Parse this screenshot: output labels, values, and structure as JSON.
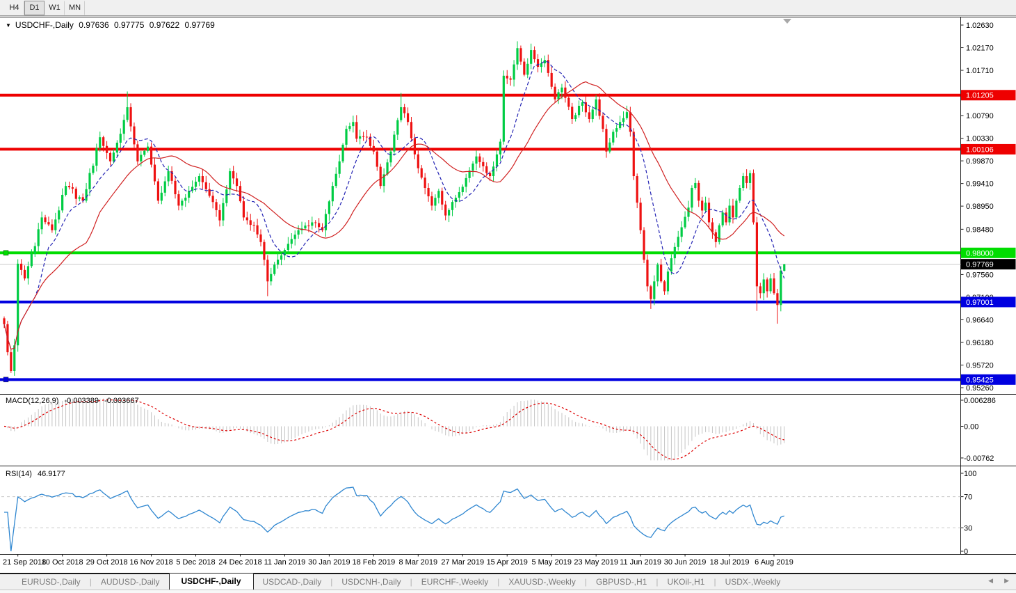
{
  "toolbar": {
    "timeframes": [
      "H4",
      "D1",
      "W1",
      "MN"
    ],
    "active": "D1"
  },
  "chart": {
    "menu_icon": "▼",
    "symbol": "USDCHF-,Daily",
    "quote": {
      "open": "0.97636",
      "high": "0.97775",
      "low": "0.97622",
      "close": "0.97769"
    }
  },
  "chart_data": {
    "type": "candlestick",
    "title": "USDCHF-,Daily",
    "ylim": [
      0.95189,
      1.02715
    ],
    "grid": false,
    "x_labels": [
      "21 Sep 2018",
      "10 Oct 2018",
      "29 Oct 2018",
      "16 Nov 2018",
      "5 Dec 2018",
      "24 Dec 2018",
      "11 Jan 2019",
      "30 Jan 2019",
      "18 Feb 2019",
      "8 Mar 2019",
      "27 Mar 2019",
      "15 Apr 2019",
      "5 May 2019",
      "23 May 2019",
      "11 Jun 2019",
      "30 Jun 2019",
      "18 Jul 2019",
      "6 Aug 2019"
    ],
    "x_label_first_candle": 4,
    "x_label_step": 13,
    "candles_n": 229,
    "y_axis": {
      "ticks": [
        "1.02630",
        "1.02170",
        "1.01710",
        "1.00790",
        "1.00330",
        "0.99870",
        "0.99410",
        "0.98950",
        "0.98480",
        "0.97560",
        "0.97100",
        "0.96640",
        "0.96180",
        "0.95720",
        "0.95260"
      ]
    },
    "hlines": [
      {
        "value": 1.01205,
        "label": "1.01205",
        "color": "#ee0000",
        "width": 4,
        "handles": false
      },
      {
        "value": 1.00106,
        "label": "1.00106",
        "color": "#ee0000",
        "width": 4,
        "handles": false
      },
      {
        "value": 0.98,
        "label": "0.98000",
        "color": "#00dd00",
        "width": 4,
        "handles": true
      },
      {
        "value": 0.97001,
        "label": "0.97001",
        "color": "#0000e0",
        "width": 4,
        "handles": false
      },
      {
        "value": 0.95425,
        "label": "0.95425",
        "color": "#0000e0",
        "width": 4,
        "handles": true
      }
    ],
    "current_price": {
      "value": 0.97769,
      "label": "0.97769",
      "line_color": "#c9c9c9",
      "box_color": "#000000"
    },
    "colors": {
      "bull": "#00cc44",
      "bear": "#ee1111",
      "ma_fast": "#2424b4",
      "ma_slow": "#d02020"
    },
    "moving_averages": [
      {
        "period": 10,
        "color": "#2424b4",
        "dashed": true
      },
      {
        "period": 25,
        "color": "#d02020",
        "dashed": false
      }
    ],
    "price_anchors": [
      [
        0,
        0.9655
      ],
      [
        1,
        0.9598
      ],
      [
        2,
        0.956
      ],
      [
        3,
        0.9612
      ],
      [
        4,
        0.9778
      ],
      [
        6,
        0.9748
      ],
      [
        11,
        0.9872
      ],
      [
        14,
        0.9846
      ],
      [
        18,
        0.9936
      ],
      [
        23,
        0.9906
      ],
      [
        28,
        1.0035
      ],
      [
        31,
        0.9986
      ],
      [
        34,
        1.0042
      ],
      [
        36,
        1.0096
      ],
      [
        39,
        0.9986
      ],
      [
        42,
        1.0016
      ],
      [
        45,
        0.9906
      ],
      [
        48,
        0.9966
      ],
      [
        51,
        0.9896
      ],
      [
        54,
        0.9926
      ],
      [
        57,
        0.9956
      ],
      [
        60,
        0.9916
      ],
      [
        63,
        0.9866
      ],
      [
        66,
        0.9966
      ],
      [
        68,
        0.9936
      ],
      [
        70,
        0.9872
      ],
      [
        73,
        0.9856
      ],
      [
        75,
        0.9822
      ],
      [
        76,
        0.9786
      ],
      [
        77,
        0.9742
      ],
      [
        79,
        0.9776
      ],
      [
        82,
        0.9806
      ],
      [
        86,
        0.9846
      ],
      [
        90,
        0.9862
      ],
      [
        93,
        0.9846
      ],
      [
        96,
        0.9936
      ],
      [
        98,
        0.9986
      ],
      [
        100,
        1.0052
      ],
      [
        102,
        1.0066
      ],
      [
        103,
        1.0032
      ],
      [
        106,
        1.0036
      ],
      [
        108,
        1.0006
      ],
      [
        110,
        0.9936
      ],
      [
        113,
        1.0006
      ],
      [
        116,
        1.0096
      ],
      [
        118,
        1.0066
      ],
      [
        121,
        0.9972
      ],
      [
        123,
        0.9932
      ],
      [
        125,
        0.9896
      ],
      [
        127,
        0.9926
      ],
      [
        129,
        0.9876
      ],
      [
        132,
        0.9912
      ],
      [
        135,
        0.9952
      ],
      [
        138,
        0.9996
      ],
      [
        140,
        0.9976
      ],
      [
        142,
        0.9956
      ],
      [
        145,
        1.0026
      ],
      [
        146,
        1.016
      ],
      [
        148,
        1.0152
      ],
      [
        150,
        1.0216
      ],
      [
        152,
        1.0162
      ],
      [
        154,
        1.0212
      ],
      [
        156,
        1.0178
      ],
      [
        158,
        1.0192
      ],
      [
        161,
        1.0112
      ],
      [
        163,
        1.0136
      ],
      [
        166,
        1.0072
      ],
      [
        169,
        1.0106
      ],
      [
        171,
        1.0072
      ],
      [
        173,
        1.0112
      ],
      [
        175,
        1.0052
      ],
      [
        176,
        1.0006
      ],
      [
        178,
        1.0046
      ],
      [
        180,
        1.0066
      ],
      [
        182,
        1.0086
      ],
      [
        183,
        1.0046
      ],
      [
        184,
        0.9956
      ],
      [
        185,
        0.9902
      ],
      [
        186,
        0.9846
      ],
      [
        187,
        0.9786
      ],
      [
        188,
        0.9732
      ],
      [
        189,
        0.9706
      ],
      [
        190,
        0.9742
      ],
      [
        191,
        0.9776
      ],
      [
        192,
        0.9742
      ],
      [
        193,
        0.9722
      ],
      [
        194,
        0.9762
      ],
      [
        196,
        0.9812
      ],
      [
        198,
        0.9852
      ],
      [
        200,
        0.9892
      ],
      [
        201,
        0.9932
      ],
      [
        202,
        0.9942
      ],
      [
        203,
        0.9906
      ],
      [
        204,
        0.9886
      ],
      [
        205,
        0.9902
      ],
      [
        206,
        0.9862
      ],
      [
        207,
        0.9842
      ],
      [
        208,
        0.9822
      ],
      [
        209,
        0.9856
      ],
      [
        210,
        0.9882
      ],
      [
        211,
        0.9862
      ],
      [
        212,
        0.9896
      ],
      [
        213,
        0.9872
      ],
      [
        214,
        0.9906
      ],
      [
        215,
        0.9932
      ],
      [
        216,
        0.9956
      ],
      [
        217,
        0.9942
      ],
      [
        218,
        0.9962
      ],
      [
        219,
        0.9862
      ],
      [
        220,
        0.9732
      ],
      [
        221,
        0.9718
      ],
      [
        222,
        0.9746
      ],
      [
        223,
        0.9722
      ],
      [
        224,
        0.9748
      ],
      [
        225,
        0.9718
      ],
      [
        226,
        0.9694
      ],
      [
        227,
        0.9764
      ],
      [
        228,
        0.97769
      ]
    ],
    "candle_overrides": {
      "2": {
        "l": 0.9556
      },
      "36": {
        "h": 1.0128
      },
      "77": {
        "l": 0.9712
      },
      "116": {
        "h": 1.0125
      },
      "146": {
        "l": 1.002
      },
      "150": {
        "h": 1.023
      },
      "189": {
        "l": 0.9686
      },
      "202": {
        "h": 0.9952
      },
      "218": {
        "h": 0.9968
      },
      "220": {
        "l": 0.9682
      },
      "226": {
        "l": 0.9656
      },
      "228": {
        "o": 0.97636,
        "h": 0.97775,
        "l": 0.97622,
        "c": 0.97769
      }
    },
    "macd": {
      "label": "MACD(12,26,9)",
      "value_main": "-0.003389",
      "value_signal": "-0.003667",
      "fast": 12,
      "slow": 26,
      "signal": 9,
      "y_ticks": [
        "0.006286",
        "0.00",
        "-0.00762"
      ],
      "y_tick_values": [
        0.006286,
        0.0,
        -0.00762
      ],
      "hist_color": "#c4c4c4",
      "signal_color": "#dd0000"
    },
    "rsi": {
      "label": "RSI(14)",
      "value": "46.9177",
      "period": 14,
      "levels": [
        70,
        30
      ],
      "y_ticks": [
        "100",
        "70",
        "30",
        "0"
      ],
      "y_tick_values": [
        100,
        70,
        30,
        0
      ],
      "color": "#2e86d0",
      "level_color": "#c8c8c8"
    }
  },
  "tabs": {
    "items": [
      {
        "label": "EURUSD-,Daily",
        "active": false
      },
      {
        "label": "AUDUSD-,Daily",
        "active": false
      },
      {
        "label": "USDCHF-,Daily",
        "active": true
      },
      {
        "label": "USDCAD-,Daily",
        "active": false
      },
      {
        "label": "USDCNH-,Daily",
        "active": false
      },
      {
        "label": "EURCHF-,Weekly",
        "active": false
      },
      {
        "label": "XAUUSD-,Weekly",
        "active": false
      },
      {
        "label": "GBPUSD-,H1",
        "active": false
      },
      {
        "label": "UKOil-,H1",
        "active": false
      },
      {
        "label": "USDX-,Weekly",
        "active": false
      }
    ],
    "separator": "|",
    "nav_left": "◀",
    "nav_right": "▶"
  }
}
